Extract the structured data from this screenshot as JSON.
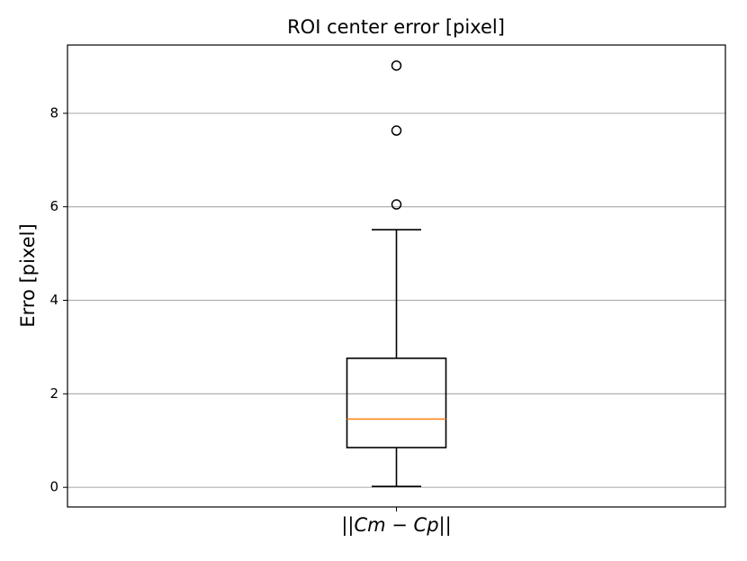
{
  "chart_data": {
    "type": "box",
    "title": "ROI center error [pixel]",
    "ylabel": "Erro [pixel]",
    "categories": [
      "||Cm − Cp||"
    ],
    "boxes": [
      {
        "whislo": 0.02,
        "q1": 0.85,
        "med": 1.46,
        "q3": 2.76,
        "whishi": 5.51,
        "fliers": [
          6.05,
          7.63,
          9.02
        ]
      }
    ],
    "box_color": "#000000",
    "median_color": "#ff7f0e",
    "ylim": [
      -0.42,
      9.46
    ],
    "yticks": [
      0,
      2,
      4,
      6,
      8
    ],
    "grid": true
  }
}
